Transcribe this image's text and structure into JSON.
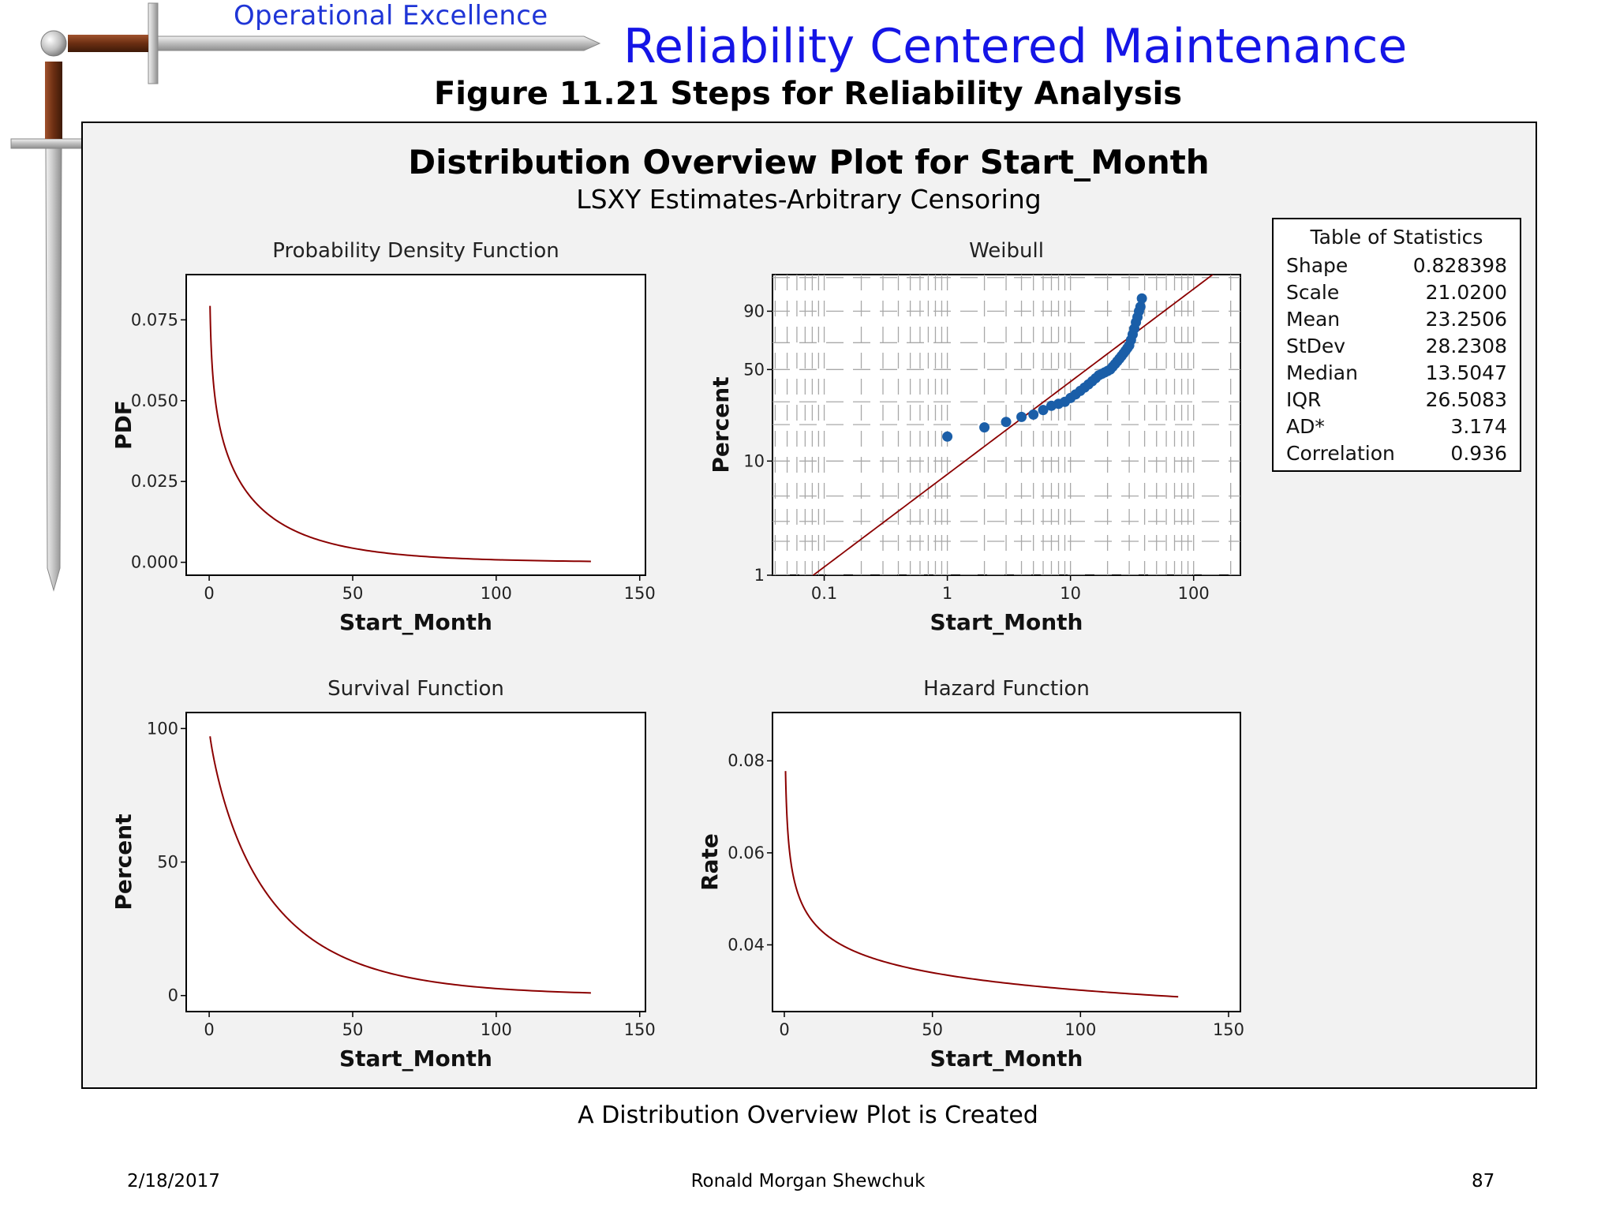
{
  "slide": {
    "header_small": "Operational Excellence",
    "header_main": "Reliability Centered Maintenance",
    "figure_title": "Figure 11.21  Steps for Reliability Analysis",
    "caption": "A Distribution Overview Plot is Created",
    "footer_date": "2/18/2017",
    "footer_author": "Ronald Morgan Shewchuk",
    "footer_page": "87",
    "icon": "sword-icon"
  },
  "plot": {
    "title": "Distribution Overview Plot for Start_Month",
    "subtitle": "LSXY Estimates-Arbitrary Censoring"
  },
  "stats": {
    "title": "Table of Statistics",
    "rows": [
      {
        "label": "Shape",
        "value": "0.828398"
      },
      {
        "label": "Scale",
        "value": "21.0200"
      },
      {
        "label": "Mean",
        "value": "23.2506"
      },
      {
        "label": "StDev",
        "value": "28.2308"
      },
      {
        "label": "Median",
        "value": "13.5047"
      },
      {
        "label": "IQR",
        "value": "26.5083"
      },
      {
        "label": "AD*",
        "value": "3.174"
      },
      {
        "label": "Correlation",
        "value": "0.936"
      }
    ]
  },
  "chart_data": [
    {
      "type": "line",
      "title": "Probability Density Function",
      "xlabel": "Start_Month",
      "ylabel": "PDF",
      "xlim": [
        -8,
        152
      ],
      "ylim": [
        -0.004,
        0.089
      ],
      "x_ticks": [
        "0",
        "50",
        "100",
        "150"
      ],
      "y_ticks": [
        "0.000",
        "0.025",
        "0.050",
        "0.075"
      ],
      "shape": 0.828398,
      "scale": 21.02,
      "x_range": [
        0.3,
        133
      ],
      "line_color": "#8b0000"
    },
    {
      "type": "scatter",
      "title": "Weibull",
      "xlabel": "Start_Month",
      "ylabel": "Percent",
      "x_scale": "log",
      "y_scale": "weibull-probability",
      "x_ticks": [
        "0.1",
        "1",
        "10",
        "100"
      ],
      "y_ticks": [
        "1",
        "10",
        "50",
        "90"
      ],
      "points": [
        {
          "x": 1,
          "y": 16
        },
        {
          "x": 2,
          "y": 19
        },
        {
          "x": 3,
          "y": 21
        },
        {
          "x": 4,
          "y": 23
        },
        {
          "x": 5,
          "y": 24
        },
        {
          "x": 6,
          "y": 26
        },
        {
          "x": 7,
          "y": 28
        },
        {
          "x": 8,
          "y": 29
        },
        {
          "x": 9,
          "y": 30
        },
        {
          "x": 10,
          "y": 32
        },
        {
          "x": 11,
          "y": 34
        },
        {
          "x": 12,
          "y": 36
        },
        {
          "x": 13,
          "y": 38
        },
        {
          "x": 14,
          "y": 40
        },
        {
          "x": 15,
          "y": 42
        },
        {
          "x": 16,
          "y": 44
        },
        {
          "x": 17,
          "y": 46
        },
        {
          "x": 18,
          "y": 47
        },
        {
          "x": 19,
          "y": 48
        },
        {
          "x": 20,
          "y": 49
        },
        {
          "x": 21,
          "y": 50
        },
        {
          "x": 22,
          "y": 52
        },
        {
          "x": 23,
          "y": 54
        },
        {
          "x": 24,
          "y": 56
        },
        {
          "x": 25,
          "y": 58
        },
        {
          "x": 26,
          "y": 60
        },
        {
          "x": 27,
          "y": 62
        },
        {
          "x": 28,
          "y": 64
        },
        {
          "x": 29,
          "y": 66
        },
        {
          "x": 30,
          "y": 68
        },
        {
          "x": 31,
          "y": 72
        },
        {
          "x": 32,
          "y": 76
        },
        {
          "x": 33,
          "y": 80
        },
        {
          "x": 34,
          "y": 84
        },
        {
          "x": 35,
          "y": 87
        },
        {
          "x": 36,
          "y": 90
        },
        {
          "x": 37,
          "y": 92
        },
        {
          "x": 38,
          "y": 95
        }
      ],
      "fit_line_color": "#8b0000",
      "point_color": "#1a5ea8"
    },
    {
      "type": "line",
      "title": "Survival Function",
      "xlabel": "Start_Month",
      "ylabel": "Percent",
      "xlim": [
        -8,
        152
      ],
      "ylim": [
        -6,
        106
      ],
      "x_ticks": [
        "0",
        "50",
        "100",
        "150"
      ],
      "y_ticks": [
        "0",
        "50",
        "100"
      ],
      "shape": 0.828398,
      "scale": 21.02,
      "x_range": [
        0.3,
        133
      ],
      "line_color": "#8b0000"
    },
    {
      "type": "line",
      "title": "Hazard Function",
      "xlabel": "Start_Month",
      "ylabel": "Rate",
      "xlim": [
        -4,
        154
      ],
      "ylim": [
        0.0255,
        0.0905
      ],
      "x_ticks": [
        "0",
        "50",
        "100",
        "150"
      ],
      "y_ticks": [
        "0.04",
        "0.06",
        "0.08"
      ],
      "shape": 0.828398,
      "scale": 21.02,
      "x_range": [
        0.4,
        133
      ],
      "line_color": "#8b0000"
    }
  ]
}
